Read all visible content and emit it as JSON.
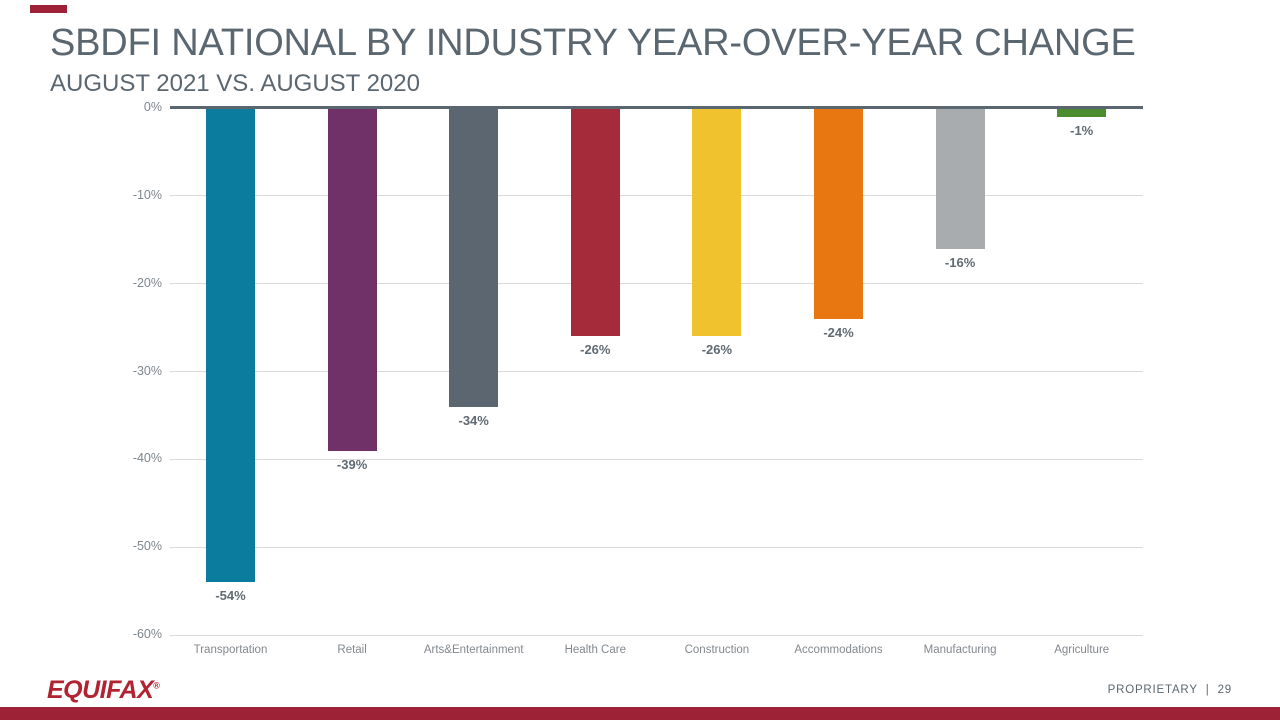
{
  "slide": {
    "title": "SBDFI NATIONAL BY INDUSTRY YEAR-OVER-YEAR CHANGE",
    "subtitle": "AUGUST 2021 VS. AUGUST 2020"
  },
  "footer": {
    "logo_text": "EQUIFAX",
    "trademark": "®",
    "proprietary_label": "PROPRIETARY",
    "divider": "|",
    "page_number": "29"
  },
  "colors": {
    "title_text": "#5B6770",
    "axis_text": "#7E868E",
    "value_label_text": "#5F6A73",
    "gridline": "#D9D9D9",
    "zero_line": "#5B6770",
    "accent_red": "#9E2235",
    "logo_red": "#B22332"
  },
  "chart_data": {
    "type": "bar",
    "title": "SBDFI National by Industry Year-over-Year Change, August 2021 vs. August 2020",
    "categories": [
      "Transportation",
      "Retail",
      "Arts&Entertainment",
      "Health Care",
      "Construction",
      "Accommodations",
      "Manufacturing",
      "Agriculture"
    ],
    "values": [
      -54,
      -39,
      -34,
      -26,
      -26,
      -24,
      -16,
      -1
    ],
    "value_labels": [
      "-54%",
      "-39%",
      "-34%",
      "-26%",
      "-26%",
      "-24%",
      "-16%",
      "-1%"
    ],
    "bar_colors": [
      "#0B7C9D",
      "#6F3168",
      "#5B6670",
      "#A52A3A",
      "#F0C32E",
      "#E87611",
      "#A8ACAF",
      "#4A8C2E"
    ],
    "xlabel": "",
    "ylabel": "",
    "ylim": [
      -60,
      0
    ],
    "yticks": [
      0,
      -10,
      -20,
      -30,
      -40,
      -50,
      -60
    ],
    "ytick_labels": [
      "0%",
      "-10%",
      "-20%",
      "-30%",
      "-40%",
      "-50%",
      "-60%"
    ],
    "grid": true,
    "legend": false
  }
}
